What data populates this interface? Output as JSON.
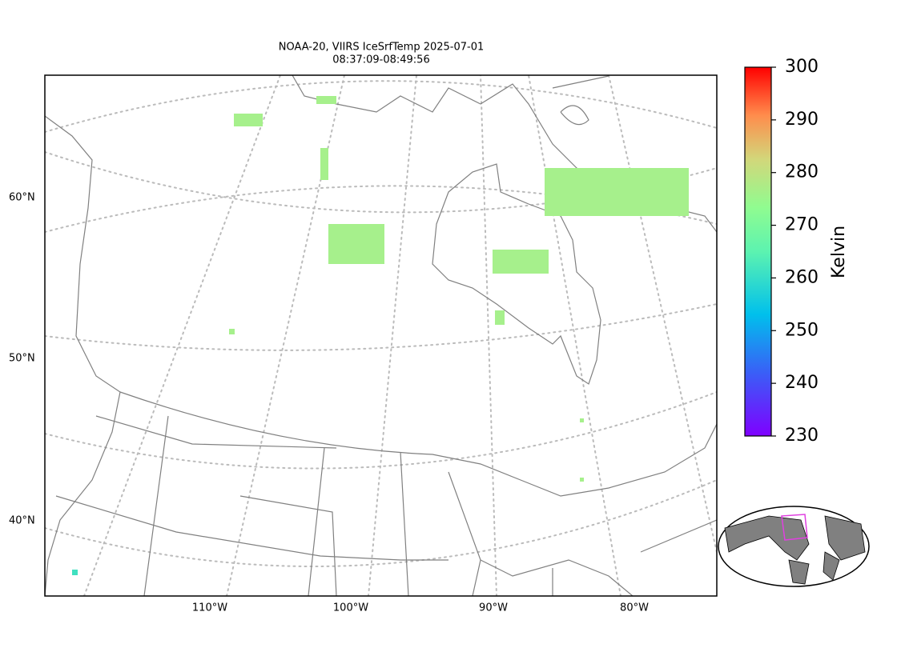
{
  "map": {
    "title": "NOAA-20, VIIRS IceSrfTemp 2025-07-01",
    "subtitle": "08:37:09-08:49:56",
    "lat_labels": [
      "60°N",
      "50°N",
      "40°N"
    ],
    "lon_labels": [
      "110°W",
      "100°W",
      "90°W",
      "80°W"
    ],
    "colorbar": {
      "label": "Kelvin",
      "range": [
        230,
        300
      ],
      "ticks": [
        230,
        240,
        250,
        260,
        270,
        280,
        290,
        300
      ]
    }
  }
}
